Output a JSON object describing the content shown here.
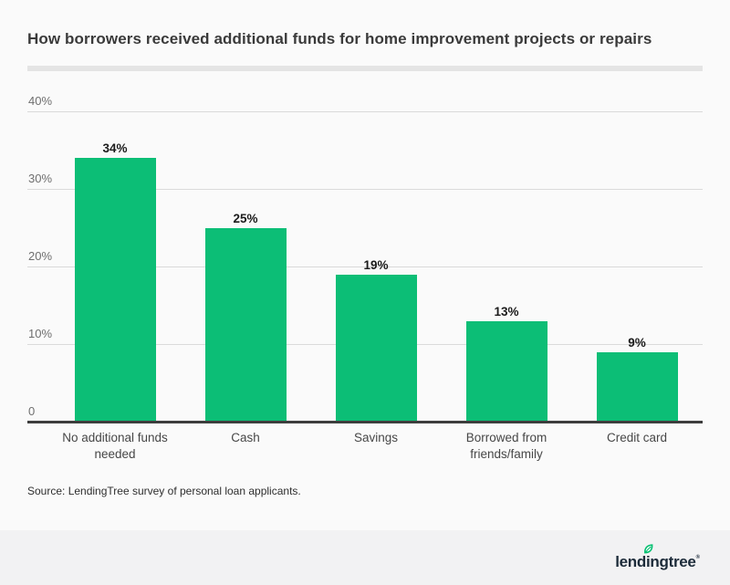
{
  "page": {
    "background": "#fafafa",
    "footer_background": "#f2f2f3"
  },
  "header": {
    "title": "How borrowers received additional funds for home improvement projects or repairs"
  },
  "chart_data": {
    "type": "bar",
    "title": "How borrowers received additional funds for home improvement projects or repairs",
    "categories": [
      "No additional funds needed",
      "Cash",
      "Savings",
      "Borrowed from friends/family",
      "Credit card"
    ],
    "category_lines": [
      [
        "No additional funds",
        "needed"
      ],
      [
        "Cash"
      ],
      [
        "Savings"
      ],
      [
        "Borrowed from",
        "friends/family"
      ],
      [
        "Credit card"
      ]
    ],
    "values": [
      34,
      25,
      19,
      13,
      9
    ],
    "value_labels": [
      "34%",
      "25%",
      "19%",
      "13%",
      "9%"
    ],
    "y_ticks": [
      {
        "value": 0,
        "label": "0"
      },
      {
        "value": 10,
        "label": "10%"
      },
      {
        "value": 20,
        "label": "20%"
      },
      {
        "value": 30,
        "label": "30%"
      },
      {
        "value": 40,
        "label": "40%"
      }
    ],
    "ylim": [
      0,
      40
    ],
    "xlabel": "",
    "ylabel": "",
    "grid": true,
    "legend": "none",
    "bar_color": "#0cbe76",
    "gridline_color": "#dadada",
    "baseline_color": "#3d3d3d"
  },
  "source": {
    "text": "Source: LendingTree survey of personal loan applicants."
  },
  "footer": {
    "logo": {
      "pre": "lend",
      "i_char": "i",
      "post": "ngtree",
      "mark": "®"
    }
  }
}
